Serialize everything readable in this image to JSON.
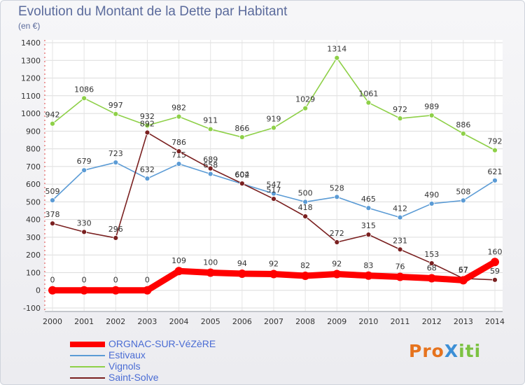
{
  "header": {
    "title": "Evolution du Montant de la Dette par Habitant",
    "subtitle": "(en €)"
  },
  "logo": {
    "text": "ProXiti"
  },
  "chart_data": {
    "type": "line",
    "title": "Evolution du Montant de la Dette par Habitant",
    "subtitle": "(en €)",
    "xlabel": "",
    "ylabel": "",
    "x": [
      "2000",
      "2001",
      "2002",
      "2003",
      "2004",
      "2005",
      "2006",
      "2007",
      "2008",
      "2009",
      "2010",
      "2011",
      "2012",
      "2013",
      "2014"
    ],
    "ylim": [
      -100,
      1400
    ],
    "yticks": [
      -100,
      0,
      100,
      200,
      300,
      400,
      500,
      600,
      700,
      800,
      900,
      1000,
      1100,
      1200,
      1300,
      1400
    ],
    "grid": true,
    "legend_position": "bottom-left",
    "series": [
      {
        "name": "ORGNAC-SUR-VéZèRE",
        "color": "#ff0000",
        "highlight": true,
        "values": [
          0,
          0,
          0,
          0,
          109,
          100,
          94,
          92,
          82,
          92,
          83,
          76,
          68,
          57,
          160
        ]
      },
      {
        "name": "Estivaux",
        "color": "#5b9bd5",
        "values": [
          509,
          679,
          723,
          632,
          715,
          658,
          602,
          547,
          500,
          528,
          465,
          412,
          490,
          508,
          621
        ]
      },
      {
        "name": "Vignols",
        "color": "#8ed048",
        "values": [
          942,
          1086,
          997,
          932,
          982,
          911,
          866,
          919,
          1029,
          1314,
          1061,
          972,
          989,
          886,
          792
        ]
      },
      {
        "name": "Saint-Solve",
        "color": "#7a2020",
        "values": [
          378,
          330,
          296,
          892,
          786,
          689,
          604,
          517,
          418,
          272,
          315,
          231,
          153,
          67,
          59
        ]
      }
    ]
  }
}
